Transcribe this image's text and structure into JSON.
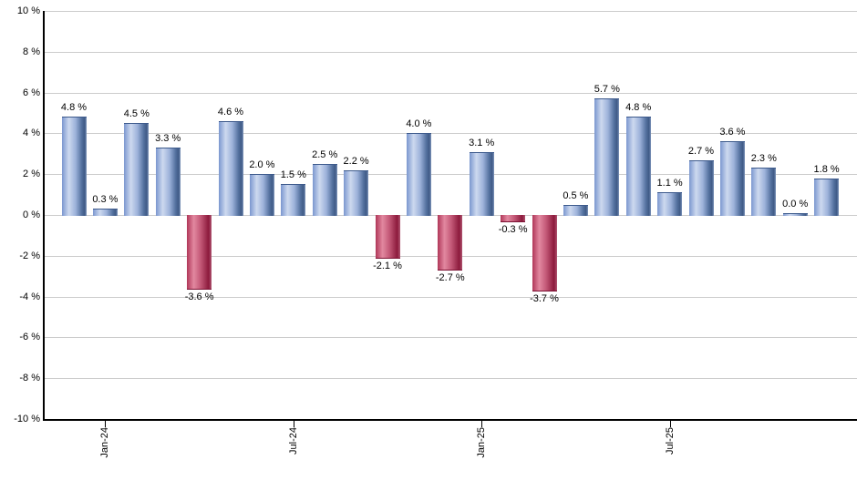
{
  "chart_data": {
    "type": "bar",
    "title": "",
    "xlabel": "",
    "ylabel": "",
    "ylim": [
      -10,
      10
    ],
    "grid": true,
    "legend": false,
    "y_ticks": [
      {
        "value": 10,
        "label": "10 %"
      },
      {
        "value": 8,
        "label": "8 %"
      },
      {
        "value": 6,
        "label": "6 %"
      },
      {
        "value": 4,
        "label": "4 %"
      },
      {
        "value": 2,
        "label": "2 %"
      },
      {
        "value": 0,
        "label": "0 %"
      },
      {
        "value": -2,
        "label": "-2 %"
      },
      {
        "value": -4,
        "label": "-4 %"
      },
      {
        "value": -6,
        "label": "-6 %"
      },
      {
        "value": -8,
        "label": "-8 %"
      },
      {
        "value": -10,
        "label": "-10 %"
      }
    ],
    "x_ticks": [
      {
        "label": "Jan-24",
        "bar_index": 1
      },
      {
        "label": "Jul-24",
        "bar_index": 7
      },
      {
        "label": "Jan-25",
        "bar_index": 13
      },
      {
        "label": "Jul-25",
        "bar_index": 19
      }
    ],
    "values": [
      4.8,
      0.3,
      4.5,
      3.3,
      -3.6,
      4.6,
      2.0,
      1.5,
      2.5,
      2.2,
      -2.1,
      4.0,
      -2.7,
      3.1,
      -0.3,
      -3.7,
      0.5,
      5.7,
      4.8,
      1.1,
      2.7,
      3.6,
      2.3,
      0.0,
      1.8
    ],
    "bar_labels": [
      "4.8 %",
      "0.3 %",
      "4.5 %",
      "3.3 %",
      "-3.6 %",
      "4.6 %",
      "2.0 %",
      "1.5 %",
      "2.5 %",
      "2.2 %",
      "-2.1 %",
      "4.0 %",
      "-2.7 %",
      "3.1 %",
      "-0.3 %",
      "-3.7 %",
      "0.5 %",
      "5.7 %",
      "4.8 %",
      "1.1 %",
      "2.7 %",
      "3.6 %",
      "2.3 %",
      "0.0 %",
      "1.8 %"
    ],
    "colors": {
      "positive_base": "#7b97cf",
      "negative_base": "#c14a68",
      "positive_gradient": [
        "#7b97cf 0%",
        "#cdd9ef 28%",
        "#9db2da 55%",
        "#54719f 80%",
        "#3f5a86 92%",
        "#8097bd 100%"
      ],
      "negative_gradient": [
        "#b03758 0%",
        "#e288a0 28%",
        "#c45a78 55%",
        "#8c1a3c 88%",
        "#b05571 100%"
      ],
      "gridline": "#cccccc",
      "axis": "#000000",
      "label_text": "#000000"
    }
  }
}
